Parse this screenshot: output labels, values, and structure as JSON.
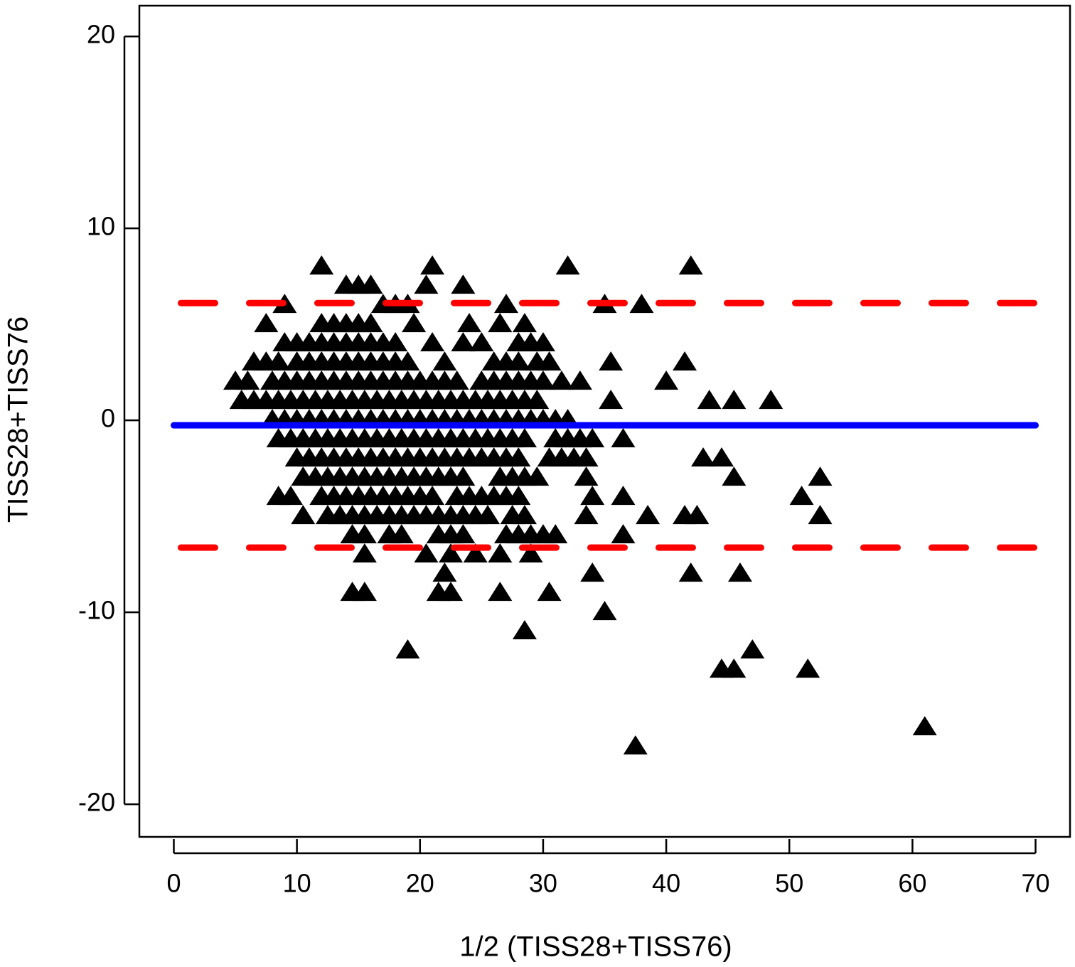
{
  "chart_data": {
    "type": "scatter",
    "x_label": "1/2 (TISS28+TISS76)",
    "y_label": "TISS28+TISS76",
    "xlim": [
      -2.8,
      72.8
    ],
    "xticks": [
      0,
      10,
      20,
      30,
      40,
      50,
      60,
      70
    ],
    "ylim": [
      -21.7,
      21.6
    ],
    "yticks": [
      -20,
      -10,
      0,
      10,
      20
    ],
    "hlines": [
      {
        "value": -0.26,
        "color": "#0000ff",
        "style": "solid"
      },
      {
        "value": 6.11,
        "color": "#ff0000",
        "style": "dashed"
      },
      {
        "value": -6.63,
        "color": "#ff0000",
        "style": "dashed"
      }
    ],
    "series": [
      {
        "color": "#000000",
        "marker": "triangle",
        "x": [
          12,
          21,
          32,
          42,
          14,
          15,
          16,
          20.5,
          23.5,
          9,
          17,
          18,
          19,
          27,
          35,
          38,
          7.5,
          12,
          13,
          14,
          15,
          16,
          19.5,
          24,
          26.5,
          28.5,
          9,
          10,
          11,
          12,
          13,
          14,
          15,
          16,
          17,
          18,
          21,
          23.5,
          25,
          28,
          29,
          30,
          6.5,
          7.5,
          8.5,
          10,
          11,
          12,
          13,
          14,
          15,
          16,
          17,
          18,
          19,
          22,
          26,
          27,
          28,
          29.5,
          30.5,
          35.5,
          41.5,
          5,
          6,
          8,
          9,
          10,
          11,
          12,
          13,
          14,
          15,
          16,
          17,
          18,
          19,
          20,
          21,
          22,
          23,
          25,
          26,
          27,
          28,
          29,
          30,
          31.5,
          33,
          40,
          5.5,
          6.5,
          7.5,
          8.5,
          9.5,
          10.5,
          11.5,
          12.5,
          13.5,
          14.5,
          15.5,
          16.5,
          17.5,
          18.5,
          19.5,
          20.5,
          21.5,
          22.5,
          23.5,
          24.5,
          25.5,
          26.5,
          27.5,
          28.5,
          29.5,
          35.5,
          43.5,
          45.5,
          48.5,
          8,
          9,
          10,
          11,
          12,
          13,
          14,
          15,
          16,
          17,
          18,
          19,
          20,
          21,
          22,
          23,
          24,
          25,
          26,
          27,
          28,
          29,
          30,
          31,
          32,
          8.5,
          9.5,
          10.5,
          11.5,
          12.5,
          13.5,
          14.5,
          15.5,
          16.5,
          17.5,
          18.5,
          19.5,
          20.5,
          21.5,
          22.5,
          23.5,
          24.5,
          25.5,
          26.5,
          27.5,
          28.5,
          31,
          32,
          33,
          34,
          36.5,
          10,
          11,
          12,
          13,
          14,
          15,
          16,
          17,
          18,
          19,
          20,
          21,
          22,
          23,
          24,
          25,
          26,
          27,
          28,
          30.5,
          31.5,
          32.5,
          33.5,
          43,
          44.5,
          10.5,
          11.5,
          12.5,
          13.5,
          14.5,
          15.5,
          16.5,
          17.5,
          18.5,
          19.5,
          20.5,
          21.5,
          22.5,
          23.5,
          26.5,
          27.5,
          28.5,
          29.5,
          33.5,
          45.5,
          52.5,
          8.5,
          9.5,
          12,
          13,
          14,
          15,
          16,
          17,
          18,
          19,
          20,
          21,
          23,
          24,
          25,
          26,
          27,
          28,
          34,
          36.5,
          51,
          10.5,
          12.5,
          13.5,
          14.5,
          15.5,
          16.5,
          17.5,
          18.5,
          19.5,
          20.5,
          21.5,
          22.5,
          23.5,
          24.5,
          25.5,
          27.5,
          28.5,
          33.5,
          38.5,
          41.5,
          42.5,
          52.5,
          14.5,
          15.5,
          17.5,
          18.5,
          21.5,
          22.5,
          23.5,
          27,
          28,
          29,
          30,
          31,
          36.5,
          15.5,
          20.5,
          22.5,
          24.5,
          26.5,
          29,
          22,
          34,
          42,
          46,
          14.5,
          15.5,
          21.5,
          22.5,
          26.5,
          30.5,
          35,
          28.5,
          19,
          47,
          44.5,
          45.5,
          51.5,
          61,
          37.5
        ],
        "values": [
          8,
          8,
          8,
          8,
          7,
          7,
          7,
          7,
          7,
          6,
          6,
          6,
          6,
          6,
          6,
          6,
          5,
          5,
          5,
          5,
          5,
          5,
          5,
          5,
          5,
          5,
          4,
          4,
          4,
          4,
          4,
          4,
          4,
          4,
          4,
          4,
          4,
          4,
          4,
          4,
          4,
          4,
          3,
          3,
          3,
          3,
          3,
          3,
          3,
          3,
          3,
          3,
          3,
          3,
          3,
          3,
          3,
          3,
          3,
          3,
          3,
          3,
          3,
          2,
          2,
          2,
          2,
          2,
          2,
          2,
          2,
          2,
          2,
          2,
          2,
          2,
          2,
          2,
          2,
          2,
          2,
          2,
          2,
          2,
          2,
          2,
          2,
          2,
          2,
          2,
          1,
          1,
          1,
          1,
          1,
          1,
          1,
          1,
          1,
          1,
          1,
          1,
          1,
          1,
          1,
          1,
          1,
          1,
          1,
          1,
          1,
          1,
          1,
          1,
          1,
          1,
          1,
          1,
          1,
          0,
          0,
          0,
          0,
          0,
          0,
          0,
          0,
          0,
          0,
          0,
          0,
          0,
          0,
          0,
          0,
          0,
          0,
          0,
          0,
          0,
          0,
          0,
          0,
          0,
          -1,
          -1,
          -1,
          -1,
          -1,
          -1,
          -1,
          -1,
          -1,
          -1,
          -1,
          -1,
          -1,
          -1,
          -1,
          -1,
          -1,
          -1,
          -1,
          -1,
          -1,
          -1,
          -1,
          -1,
          -1,
          -1,
          -2,
          -2,
          -2,
          -2,
          -2,
          -2,
          -2,
          -2,
          -2,
          -2,
          -2,
          -2,
          -2,
          -2,
          -2,
          -2,
          -2,
          -2,
          -2,
          -2,
          -2,
          -2,
          -2,
          -2,
          -2,
          -3,
          -3,
          -3,
          -3,
          -3,
          -3,
          -3,
          -3,
          -3,
          -3,
          -3,
          -3,
          -3,
          -3,
          -3,
          -3,
          -3,
          -3,
          -3,
          -3,
          -3,
          -4,
          -4,
          -4,
          -4,
          -4,
          -4,
          -4,
          -4,
          -4,
          -4,
          -4,
          -4,
          -4,
          -4,
          -4,
          -4,
          -4,
          -4,
          -4,
          -4,
          -4,
          -5,
          -5,
          -5,
          -5,
          -5,
          -5,
          -5,
          -5,
          -5,
          -5,
          -5,
          -5,
          -5,
          -5,
          -5,
          -5,
          -5,
          -5,
          -5,
          -5,
          -5,
          -5,
          -6,
          -6,
          -6,
          -6,
          -6,
          -6,
          -6,
          -6,
          -6,
          -6,
          -6,
          -6,
          -6,
          -7,
          -7,
          -7,
          -7,
          -7,
          -7,
          -8,
          -8,
          -8,
          -8,
          -9,
          -9,
          -9,
          -9,
          -9,
          -9,
          -10,
          -11,
          -12,
          -12,
          -13,
          -13,
          -13,
          -16,
          -17
        ]
      }
    ]
  }
}
